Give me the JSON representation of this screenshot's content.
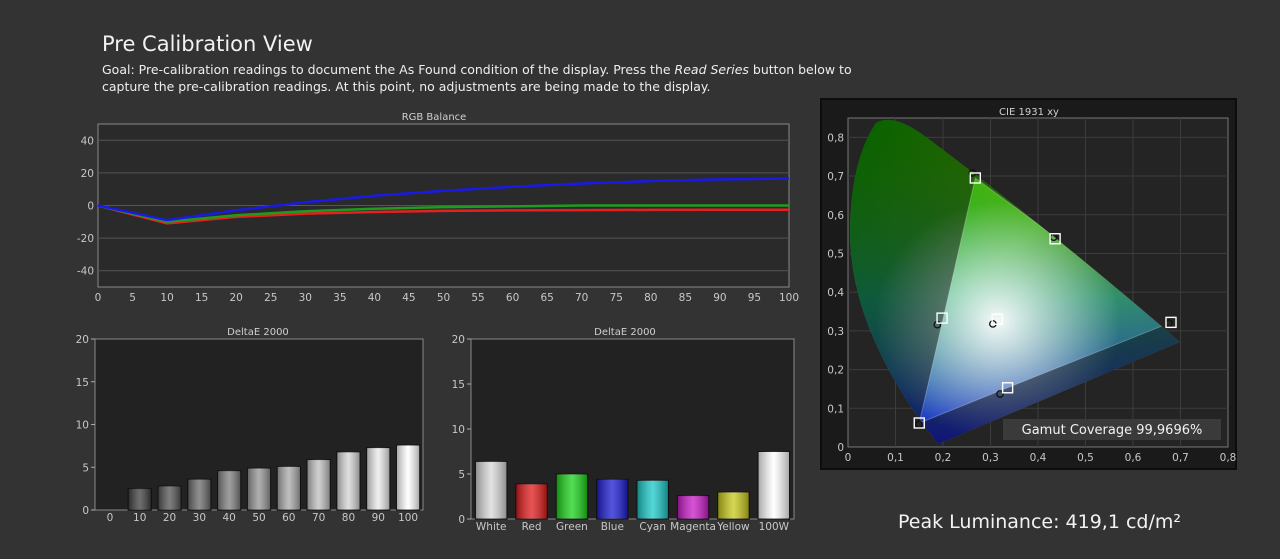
{
  "page": {
    "title": "Pre Calibration View",
    "goal_part1": "Goal: Pre-calibration readings to document the As Found condition of the display. Press the ",
    "goal_emph": "Read Series",
    "goal_part2": " button below to capture the pre-calibration readings. At this point, no adjustments are being made to the display.",
    "peak_luminance": "Peak Luminance: 419,1 cd/m²"
  },
  "chart_data": [
    {
      "type": "line",
      "title": "RGB Balance",
      "x": [
        0,
        10,
        20,
        30,
        40,
        50,
        60,
        70,
        80,
        90,
        100
      ],
      "xticks": [
        "0",
        "5",
        "10",
        "15",
        "20",
        "25",
        "30",
        "35",
        "40",
        "45",
        "50",
        "55",
        "60",
        "65",
        "70",
        "75",
        "80",
        "85",
        "90",
        "95",
        "100"
      ],
      "yticks": [
        "40",
        "20",
        "0",
        "-20",
        "-40"
      ],
      "xlim": [
        0,
        100
      ],
      "ylim": [
        -50,
        50
      ],
      "series": [
        {
          "color": "#1a1ae6",
          "values": [
            0,
            -9,
            -3,
            2,
            6,
            9,
            11.5,
            13.5,
            15,
            16,
            16.5
          ]
        },
        {
          "color": "#1f9b1f",
          "values": [
            0,
            -10,
            -6,
            -3.5,
            -2,
            -1,
            -0.5,
            0,
            0,
            0,
            0
          ]
        },
        {
          "color": "#e62020",
          "values": [
            0,
            -11,
            -7,
            -5,
            -4,
            -3.3,
            -3,
            -2.8,
            -2.7,
            -2.6,
            -2.6
          ]
        }
      ],
      "grid": true
    },
    {
      "type": "bar",
      "title": "DeltaE 2000",
      "categories": [
        "0",
        "10",
        "20",
        "30",
        "40",
        "50",
        "60",
        "70",
        "80",
        "90",
        "100"
      ],
      "values": [
        0,
        2.5,
        2.8,
        3.6,
        4.6,
        4.9,
        5.1,
        5.9,
        6.8,
        7.3,
        7.6
      ],
      "yticks": [
        "20",
        "15",
        "10",
        "5",
        "0"
      ],
      "ylim": [
        0,
        20
      ]
    },
    {
      "type": "bar",
      "title": "DeltaE 2000",
      "categories": [
        "White",
        "Red",
        "Green",
        "Blue",
        "Cyan",
        "Magenta",
        "Yellow",
        "100W"
      ],
      "values": [
        6.4,
        3.9,
        5.0,
        4.4,
        4.3,
        2.6,
        3.0,
        7.5
      ],
      "colors": [
        "#d8d8d8",
        "#e01a1a",
        "#1ad21a",
        "#1a1ad2",
        "#1ac8c8",
        "#c81ac8",
        "#c8c81a",
        "#ffffff"
      ],
      "yticks": [
        "20",
        "15",
        "10",
        "5",
        "0"
      ],
      "ylim": [
        0,
        20
      ]
    },
    {
      "type": "scatter",
      "title": "CIE 1931 xy",
      "xticks": [
        "0",
        "0,1",
        "0,2",
        "0,3",
        "0,4",
        "0,5",
        "0,6",
        "0,7",
        "0,8"
      ],
      "yticks": [
        "0,8",
        "0,7",
        "0,6",
        "0,5",
        "0,4",
        "0,3",
        "0,2",
        "0,1",
        "0"
      ],
      "xlim": [
        0,
        0.8
      ],
      "ylim": [
        0,
        0.85
      ],
      "targets": [
        {
          "x": 0.268,
          "y": 0.695
        },
        {
          "x": 0.436,
          "y": 0.538
        },
        {
          "x": 0.198,
          "y": 0.333
        },
        {
          "x": 0.314,
          "y": 0.33
        },
        {
          "x": 0.68,
          "y": 0.322
        },
        {
          "x": 0.336,
          "y": 0.153
        },
        {
          "x": 0.15,
          "y": 0.062
        }
      ],
      "measured": [
        {
          "x": 0.262,
          "y": 0.708
        },
        {
          "x": 0.433,
          "y": 0.542
        },
        {
          "x": 0.188,
          "y": 0.316
        },
        {
          "x": 0.305,
          "y": 0.318
        },
        {
          "x": 0.676,
          "y": 0.32
        },
        {
          "x": 0.32,
          "y": 0.137
        },
        {
          "x": 0.149,
          "y": 0.059
        }
      ],
      "gamut_label": "Gamut Coverage 99,9696%"
    }
  ]
}
